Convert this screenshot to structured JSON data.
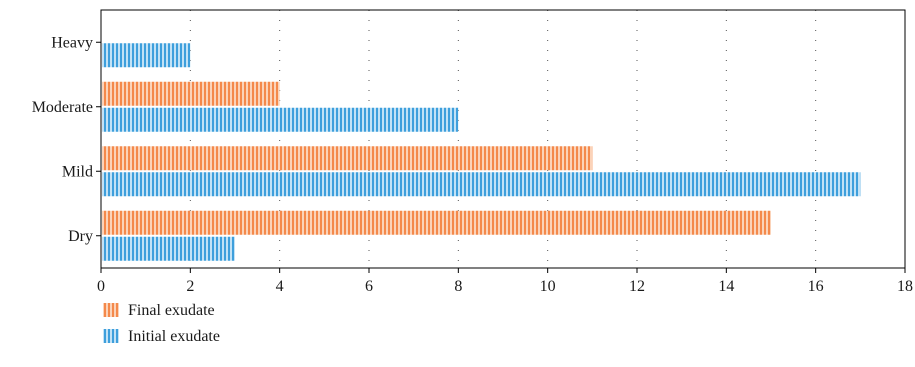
{
  "chart_data": {
    "type": "bar",
    "orientation": "horizontal",
    "categories": [
      "Heavy",
      "Moderate",
      "Mild",
      "Dry"
    ],
    "series": [
      {
        "name": "Final exudate",
        "values": [
          0,
          4,
          11,
          15
        ],
        "color": "#f4894b",
        "stripe_color": "#fbd3b9"
      },
      {
        "name": "Initial exudate",
        "values": [
          2,
          8,
          17,
          3
        ],
        "color": "#3e9fdc",
        "stripe_color": "#c2e2f6"
      }
    ],
    "xlim": [
      0,
      18
    ],
    "xticks": [
      0,
      2,
      4,
      6,
      8,
      10,
      12,
      14,
      16,
      18
    ],
    "xlabel": "",
    "ylabel": "",
    "title": "",
    "grid": "vertical dotted",
    "legend_position": "bottom-left"
  }
}
